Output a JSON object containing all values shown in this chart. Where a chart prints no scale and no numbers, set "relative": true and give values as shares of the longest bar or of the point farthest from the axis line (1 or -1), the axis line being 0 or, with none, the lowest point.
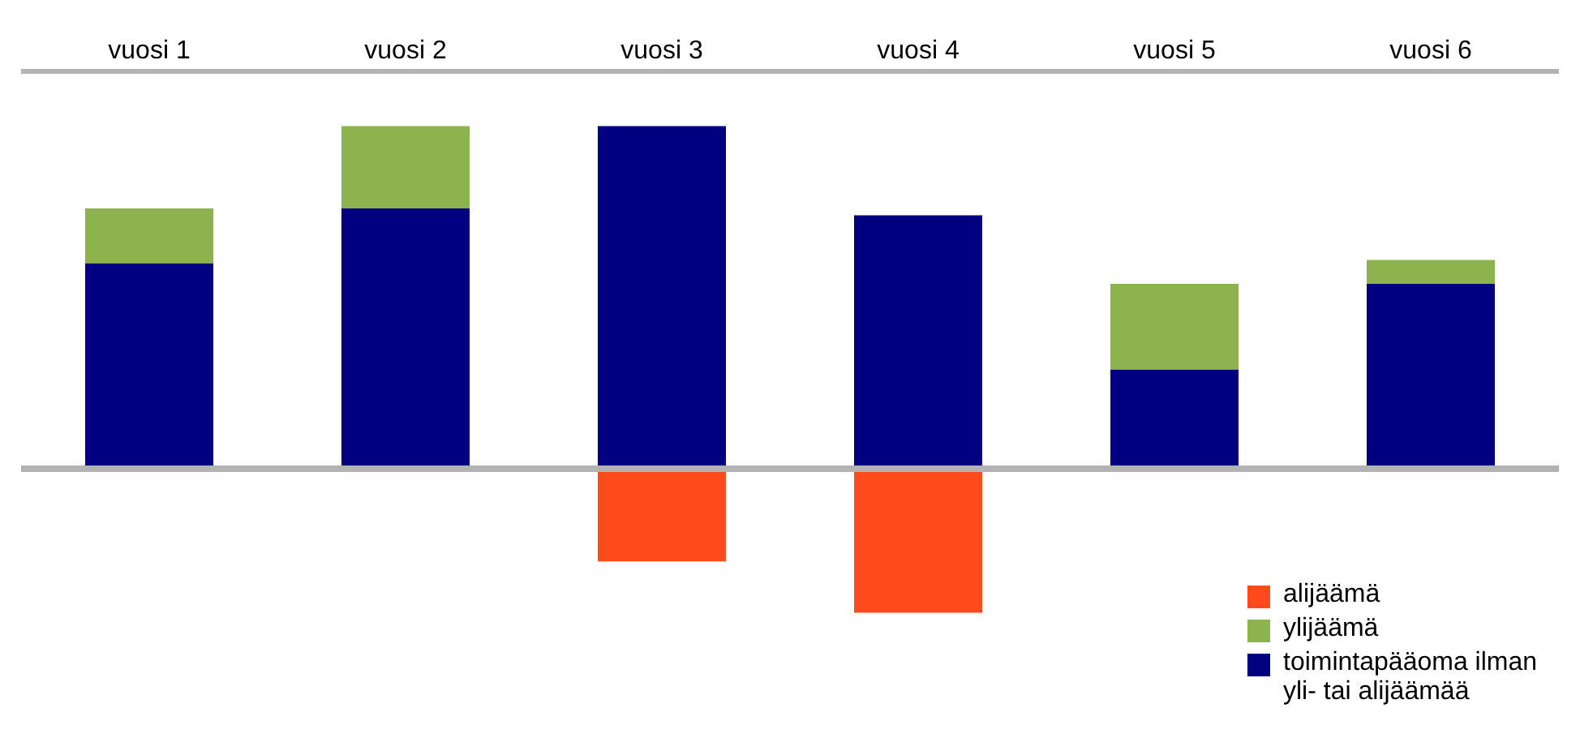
{
  "chart_data": {
    "type": "bar",
    "stacked": true,
    "relative": true,
    "categories": [
      "vuosi 1",
      "vuosi 2",
      "vuosi 3",
      "vuosi 4",
      "vuosi 5",
      "vuosi 6"
    ],
    "series": [
      {
        "name": "toimintapääoma ilman yli- tai alijäämää",
        "color": "#000080",
        "values": [
          0.6,
          0.76,
          1.0,
          0.74,
          0.29,
          0.54
        ]
      },
      {
        "name": "ylijäämä",
        "color": "#8db34f",
        "values": [
          0.16,
          0.24,
          null,
          null,
          0.25,
          0.07
        ]
      },
      {
        "name": "alijäämä",
        "color": "#ff4a1c",
        "values": [
          null,
          null,
          -0.27,
          -0.42,
          null,
          null
        ]
      }
    ],
    "legend": "bottom right"
  }
}
